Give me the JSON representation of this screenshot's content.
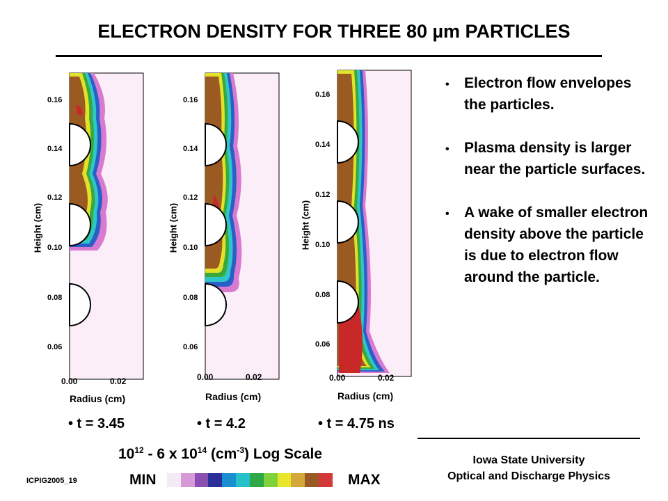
{
  "title": "ELECTRON DENSITY  FOR THREE 80 µm PARTICLES",
  "y_axis_label": "Height (cm)",
  "x_axis_label": "Radius (cm)",
  "y_ticks": [
    "0.16",
    "0.14",
    "0.12",
    "0.10",
    "0.08",
    "0.06"
  ],
  "x_ticks": [
    "0.00",
    "0.02"
  ],
  "panels": [
    {
      "caption": "• t = 3.45"
    },
    {
      "caption": "• t = 4.2"
    },
    {
      "caption": "• t = 4.75 ns"
    }
  ],
  "bullets": [
    "Electron flow envelopes the particles.",
    "Plasma density is larger near the particle surfaces.",
    "A wake of smaller electron density above the particle is due to electron flow around the particle."
  ],
  "bullet_symbol": "•",
  "scale": {
    "base1": "10",
    "exp1": "12",
    "mid": "  -  6 x 10",
    "exp2": "14",
    "unit_pre": " (cm",
    "unit_exp": "-3",
    "unit_post": ") Log Scale",
    "min_label": "MIN",
    "max_label": "MAX",
    "colors": [
      "#f4eaf6",
      "#d79ad6",
      "#8a4fb0",
      "#2c2f9a",
      "#1a8fd0",
      "#25c3c8",
      "#2fa84a",
      "#7fd23a",
      "#e6e62a",
      "#d6a63a",
      "#9a5a26",
      "#d23a3a"
    ]
  },
  "institution": {
    "line1": "Iowa State University",
    "line2": "Optical and Discharge Physics"
  },
  "footer": "ICPIG2005_19",
  "palette": {
    "background_pink": "#fbeef8",
    "magenta": "#d77ad0",
    "blue": "#2a5fc8",
    "cyan": "#2ec6c6",
    "green": "#3aa83a",
    "yellow": "#e2e22a",
    "brown": "#9a5a22",
    "red": "#c82828"
  }
}
